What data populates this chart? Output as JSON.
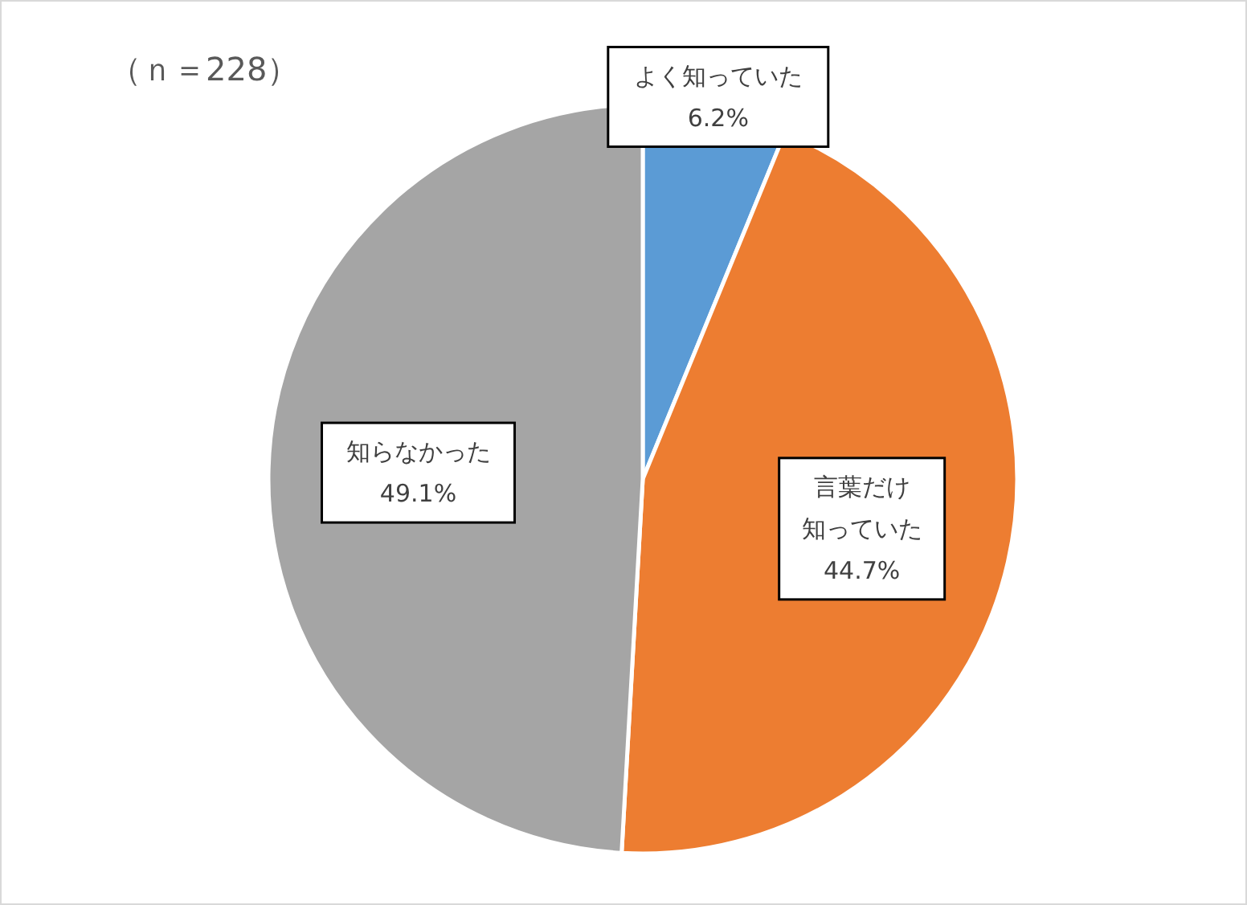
{
  "chart_data": {
    "type": "pie",
    "title": "（ｎ＝228）",
    "categories": [
      "よく知っていた",
      "言葉だけ知っていた",
      "知らなかった"
    ],
    "values": [
      6.2,
      44.7,
      49.1
    ],
    "colors": [
      "#5b9bd5",
      "#ed7d31",
      "#a5a5a5"
    ],
    "value_labels": [
      "6.2%",
      "44.7%",
      "49.1%"
    ]
  }
}
